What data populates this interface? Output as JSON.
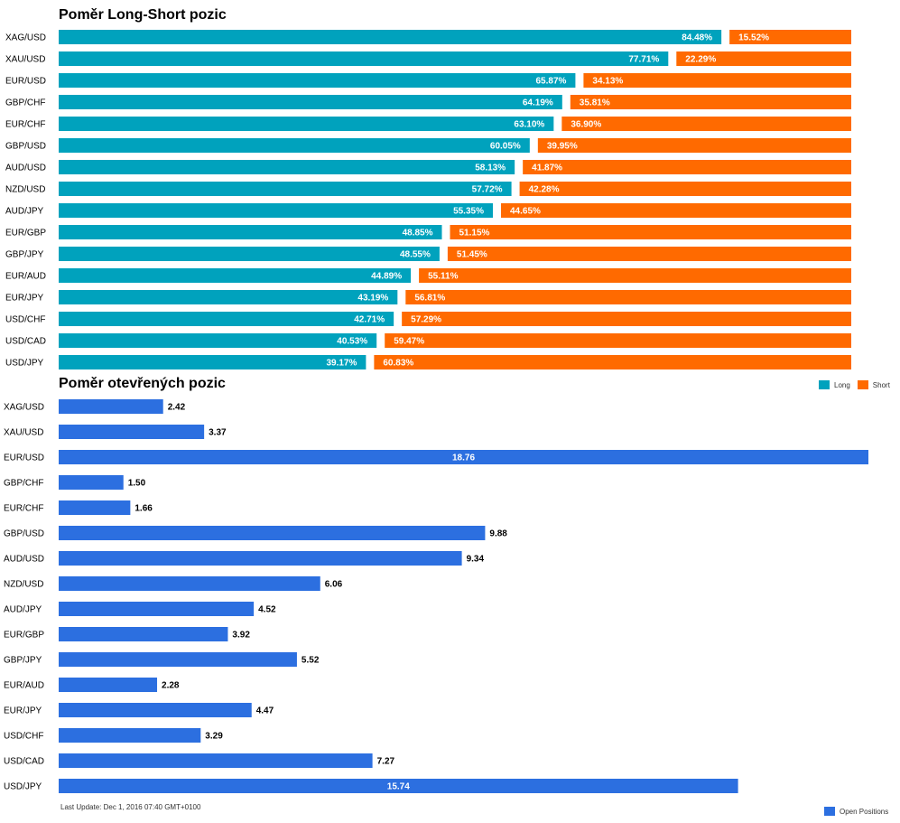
{
  "colors": {
    "long": "#00A2BD",
    "short": "#FF6A00",
    "open": "#2C6FE0"
  },
  "charts": {
    "long_short": {
      "title": "Poměr Long-Short pozic",
      "legend": [
        "Long",
        "Short"
      ]
    },
    "open_positions": {
      "title": "Poměr otevřených pozic",
      "legend": [
        "Open Positions"
      ]
    }
  },
  "footer": {
    "last_update": "Last Update: Dec 1, 2016 07:40 GMT+0100"
  },
  "chart_data": [
    {
      "type": "bar",
      "orientation": "horizontal",
      "stacked": true,
      "title": "Poměr Long-Short pozic",
      "legend_position": "bottom-right",
      "categories": [
        "XAG/USD",
        "XAU/USD",
        "EUR/USD",
        "GBP/CHF",
        "EUR/CHF",
        "GBP/USD",
        "AUD/USD",
        "NZD/USD",
        "AUD/JPY",
        "EUR/GBP",
        "GBP/JPY",
        "EUR/AUD",
        "EUR/JPY",
        "USD/CHF",
        "USD/CAD",
        "USD/JPY"
      ],
      "series": [
        {
          "name": "Long",
          "values": [
            84.48,
            77.71,
            65.87,
            64.19,
            63.1,
            60.05,
            58.13,
            57.72,
            55.35,
            48.85,
            48.55,
            44.89,
            43.19,
            42.71,
            40.53,
            39.17
          ],
          "labels": [
            "84.48%",
            "77.71%",
            "65.87%",
            "64.19%",
            "63.10%",
            "60.05%",
            "58.13%",
            "57.72%",
            "55.35%",
            "48.85%",
            "48.55%",
            "44.89%",
            "43.19%",
            "42.71%",
            "40.53%",
            "39.17%"
          ]
        },
        {
          "name": "Short",
          "values": [
            15.52,
            22.29,
            34.13,
            35.81,
            36.9,
            39.95,
            41.87,
            42.28,
            44.65,
            51.15,
            51.45,
            55.11,
            56.81,
            57.29,
            59.47,
            60.83
          ],
          "labels": [
            "15.52%",
            "22.29%",
            "34.13%",
            "35.81%",
            "36.90%",
            "39.95%",
            "41.87%",
            "42.28%",
            "44.65%",
            "51.15%",
            "51.45%",
            "55.11%",
            "56.81%",
            "57.29%",
            "59.47%",
            "60.83%"
          ]
        }
      ],
      "xlim": [
        0,
        100
      ]
    },
    {
      "type": "bar",
      "orientation": "horizontal",
      "title": "Poměr otevřených pozic",
      "legend_position": "bottom-right",
      "categories": [
        "XAG/USD",
        "XAU/USD",
        "EUR/USD",
        "GBP/CHF",
        "EUR/CHF",
        "GBP/USD",
        "AUD/USD",
        "NZD/USD",
        "AUD/JPY",
        "EUR/GBP",
        "GBP/JPY",
        "EUR/AUD",
        "EUR/JPY",
        "USD/CHF",
        "USD/CAD",
        "USD/JPY"
      ],
      "series": [
        {
          "name": "Open Positions",
          "values": [
            2.42,
            3.37,
            18.76,
            1.5,
            1.66,
            9.88,
            9.34,
            6.06,
            4.52,
            3.92,
            5.52,
            2.28,
            4.47,
            3.29,
            7.27,
            15.74
          ],
          "labels": [
            "2.42",
            "3.37",
            "18.76",
            "1.50",
            "1.66",
            "9.88",
            "9.34",
            "6.06",
            "4.52",
            "3.92",
            "5.52",
            "2.28",
            "4.47",
            "3.29",
            "7.27",
            "15.74"
          ]
        }
      ],
      "xlim": [
        0,
        18.76
      ]
    }
  ]
}
